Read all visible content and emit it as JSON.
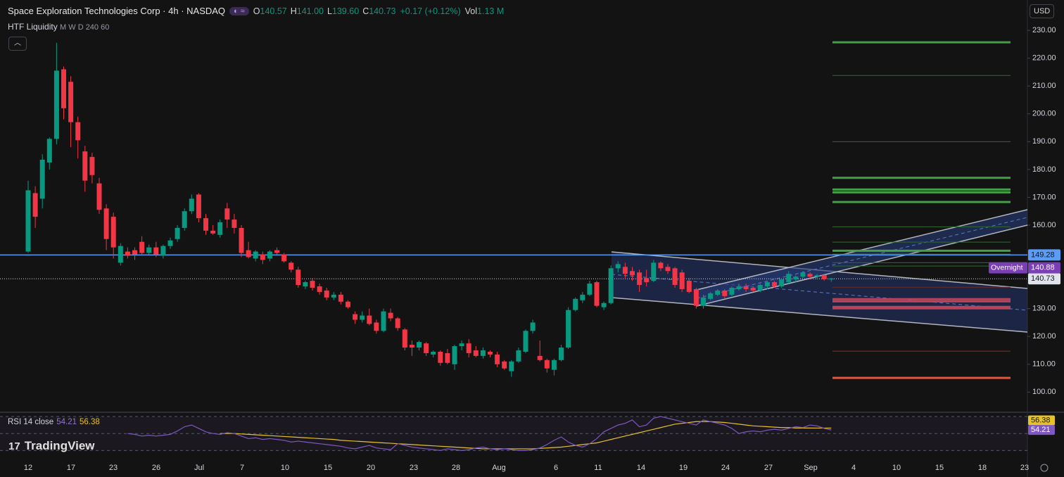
{
  "header": {
    "symbol": "Space Exploration Technologies Corp · 4h · NASDAQ",
    "ohlc": [
      {
        "k": "O",
        "v": "140.57"
      },
      {
        "k": "H",
        "v": "141.00"
      },
      {
        "k": "L",
        "v": "139.60"
      },
      {
        "k": "C",
        "v": "140.73"
      }
    ],
    "change": "+0.17 (+0.12%)",
    "vol_label": "Vol",
    "vol": "1.13 M",
    "indicator": "HTF Liquidity",
    "indicator_params": "M W D 240 60",
    "currency": "USD",
    "logo": "TradingView"
  },
  "chart_data": {
    "type": "candlestick",
    "up_color": "#089981",
    "down_color": "#f23645",
    "ylim": [
      93,
      240.9
    ],
    "yticks": [
      {
        "value": 230,
        "label": "230.00"
      },
      {
        "value": 220,
        "label": "220.00"
      },
      {
        "value": 210,
        "label": "210.00"
      },
      {
        "value": 200,
        "label": "200.00"
      },
      {
        "value": 190,
        "label": "190.00"
      },
      {
        "value": 180,
        "label": "180.00"
      },
      {
        "value": 170,
        "label": "170.00"
      },
      {
        "value": 160,
        "label": "160.00"
      },
      {
        "value": 130,
        "label": "130.00"
      },
      {
        "value": 120,
        "label": "120.00"
      },
      {
        "value": 110,
        "label": "110.00"
      },
      {
        "value": 100,
        "label": "100.00"
      }
    ],
    "x_labels": [
      "12",
      "17",
      "23",
      "26",
      "Jul",
      "7",
      "10",
      "15",
      "20",
      "23",
      "28",
      "Aug",
      "6",
      "11",
      "14",
      "19",
      "24",
      "27",
      "Sep",
      "4",
      "10",
      "15",
      "18",
      "23"
    ],
    "ohlc": [
      [
        150.5,
        176,
        150,
        172.5
      ],
      [
        171.5,
        174,
        159,
        163
      ],
      [
        169.5,
        185.5,
        166,
        183.5
      ],
      [
        182.5,
        191.5,
        180,
        191
      ],
      [
        191,
        225.5,
        189,
        215.5
      ],
      [
        216,
        217,
        198,
        202
      ],
      [
        211.5,
        213.5,
        188,
        197
      ],
      [
        197,
        199,
        184,
        190.5
      ],
      [
        186.5,
        188.5,
        172,
        176
      ],
      [
        184.5,
        186,
        175,
        178
      ],
      [
        175,
        177,
        164,
        165.5
      ],
      [
        166,
        167.5,
        151,
        155
      ],
      [
        163,
        164.5,
        148,
        152
      ],
      [
        146.5,
        153.5,
        145.5,
        152.5
      ],
      [
        150.5,
        152,
        148,
        149
      ],
      [
        151,
        152,
        147.5,
        149.5
      ],
      [
        154,
        156,
        149,
        150
      ],
      [
        150,
        153,
        149.5,
        152
      ],
      [
        152,
        154,
        148.5,
        149.5
      ],
      [
        149,
        153,
        148,
        152.5
      ],
      [
        152.5,
        155.5,
        151.5,
        154.5
      ],
      [
        155,
        160,
        154,
        159
      ],
      [
        159,
        166,
        158,
        165
      ],
      [
        165,
        171,
        164,
        169.5
      ],
      [
        171,
        171.5,
        161,
        162.5
      ],
      [
        162.5,
        164,
        156.5,
        158
      ],
      [
        158,
        160,
        156.5,
        157
      ],
      [
        156.5,
        162,
        155.5,
        161
      ],
      [
        166,
        168,
        159,
        162
      ],
      [
        162,
        164,
        157,
        159
      ],
      [
        159,
        160,
        148.5,
        150
      ],
      [
        151,
        154,
        148,
        148.5
      ],
      [
        148,
        151,
        147,
        150.5
      ],
      [
        149.5,
        150.5,
        146,
        147.5
      ],
      [
        148,
        151,
        147,
        150.5
      ],
      [
        151,
        152,
        149.5,
        150
      ],
      [
        149.5,
        150,
        146.5,
        147
      ],
      [
        146.5,
        147,
        143,
        144
      ],
      [
        144,
        145,
        137.5,
        138.5
      ],
      [
        138,
        140,
        137,
        139.5
      ],
      [
        140,
        141,
        136.5,
        137.5
      ],
      [
        138,
        139,
        135,
        136
      ],
      [
        136.5,
        137.5,
        133,
        134
      ],
      [
        134,
        136,
        133,
        135
      ],
      [
        135,
        136,
        131.5,
        132.5
      ],
      [
        132.5,
        133,
        130,
        130.5
      ],
      [
        128,
        129,
        124.5,
        126
      ],
      [
        126,
        129,
        125,
        127.5
      ],
      [
        127.5,
        130,
        124,
        124.5
      ],
      [
        125,
        126,
        121,
        122
      ],
      [
        122,
        130,
        121.5,
        129
      ],
      [
        128.5,
        130,
        125.5,
        126.5
      ],
      [
        126.5,
        127,
        122,
        123
      ],
      [
        122.5,
        123,
        115,
        116
      ],
      [
        117,
        118.5,
        113,
        116
      ],
      [
        116,
        118.5,
        115,
        118
      ],
      [
        117.5,
        118,
        113,
        114
      ],
      [
        113.5,
        115,
        112.5,
        114.5
      ],
      [
        114.5,
        115,
        109.5,
        110.5
      ],
      [
        114,
        115.5,
        110,
        110.5
      ],
      [
        110,
        117,
        108,
        116.5
      ],
      [
        116.5,
        118.5,
        115,
        117.5
      ],
      [
        117.5,
        119,
        112.5,
        114
      ],
      [
        115,
        116.5,
        112.5,
        113
      ],
      [
        113,
        116,
        112,
        115
      ],
      [
        114.5,
        115,
        112.5,
        113.5
      ],
      [
        113.5,
        114.5,
        109,
        110
      ],
      [
        111,
        111.5,
        108,
        108.5
      ],
      [
        107.5,
        111.5,
        105.5,
        111
      ],
      [
        111,
        116,
        110.5,
        115
      ],
      [
        114.5,
        122.5,
        114,
        122
      ],
      [
        122,
        126,
        121,
        125
      ],
      [
        113,
        118.5,
        111,
        111.5
      ],
      [
        111.5,
        112,
        107,
        108.5
      ],
      [
        108,
        112,
        106,
        111.5
      ],
      [
        111.5,
        117,
        111,
        116
      ],
      [
        116,
        130.5,
        115.5,
        129.5
      ],
      [
        129.5,
        134,
        129,
        133.5
      ],
      [
        133,
        136,
        132,
        135
      ],
      [
        135,
        140,
        134.5,
        139
      ],
      [
        139.5,
        140,
        130.5,
        131
      ],
      [
        130.5,
        132.5,
        129.5,
        132
      ],
      [
        132,
        145.5,
        131.5,
        144.5
      ],
      [
        144.5,
        147,
        143,
        146
      ],
      [
        145,
        146.5,
        141,
        142.5
      ],
      [
        143.5,
        145,
        140,
        142
      ],
      [
        143,
        144,
        136,
        138.5
      ],
      [
        141,
        144,
        138,
        139.5
      ],
      [
        140,
        147.5,
        139.5,
        146.5
      ],
      [
        146.5,
        147,
        143.5,
        144.5
      ],
      [
        145,
        146,
        142.5,
        143.5
      ],
      [
        144.5,
        145,
        137.5,
        138.5
      ],
      [
        143,
        144,
        136,
        137
      ],
      [
        140,
        141,
        135.5,
        136
      ],
      [
        137,
        137.5,
        130,
        131
      ],
      [
        131,
        135,
        130,
        134
      ],
      [
        133.5,
        136,
        133,
        135.5
      ],
      [
        135,
        137,
        134.5,
        136.5
      ],
      [
        136.5,
        137,
        133.5,
        134.5
      ],
      [
        135,
        138,
        134.5,
        137.5
      ],
      [
        137,
        139,
        136.5,
        138
      ],
      [
        138,
        139,
        136,
        137
      ],
      [
        137.5,
        138,
        136,
        136.5
      ],
      [
        136.5,
        139,
        136,
        138.5
      ],
      [
        138,
        140,
        137,
        139.5
      ],
      [
        139.5,
        140,
        137.5,
        138
      ],
      [
        138,
        141,
        137.5,
        140.5
      ],
      [
        139.5,
        143.5,
        139,
        142.5
      ],
      [
        140.5,
        142,
        139.5,
        141.5
      ],
      [
        141.5,
        143.5,
        141,
        143
      ],
      [
        142.5,
        143,
        140.5,
        141.5
      ],
      [
        141.5,
        142.5,
        140.5,
        142
      ],
      [
        142,
        142.5,
        140,
        140.57
      ],
      [
        140.57,
        141,
        139.6,
        140.73
      ]
    ],
    "liquidity_levels": [
      {
        "price": 225.7,
        "color": "#43a047",
        "weight": "strong"
      },
      {
        "price": 213.8,
        "color": "#2e6b30",
        "weight": "weak"
      },
      {
        "price": 190,
        "color": "#2e6b30",
        "weight": "weak"
      },
      {
        "price": 177,
        "color": "#43a047",
        "weight": "strong"
      },
      {
        "price": 172.8,
        "color": "#43a047",
        "weight": "strong"
      },
      {
        "price": 171.8,
        "color": "#43a047",
        "weight": "strong"
      },
      {
        "price": 168.3,
        "color": "#43a047",
        "weight": "strong"
      },
      {
        "price": 159.4,
        "color": "#2e6b30",
        "weight": "weak"
      },
      {
        "price": 153.9,
        "color": "#2e6b30",
        "weight": "weak"
      },
      {
        "price": 150.8,
        "color": "#43a047",
        "weight": "strong"
      },
      {
        "price": 149.6,
        "color": "#2e6b30",
        "weight": "weak"
      },
      {
        "price": 146.5,
        "color": "#2e6b30",
        "weight": "weak"
      },
      {
        "price": 145.3,
        "color": "#2e6b30",
        "weight": "weak"
      },
      {
        "price": 137.7,
        "color": "#6e2a2a",
        "weight": "weak"
      },
      {
        "price": 133.4,
        "color": "#b8435a",
        "weight": "strong"
      },
      {
        "price": 132.6,
        "color": "#b8435a",
        "weight": "strong"
      },
      {
        "price": 130.6,
        "color": "#b8435a",
        "weight": "strong"
      },
      {
        "price": 130.1,
        "color": "#b8435a",
        "weight": "strong"
      },
      {
        "price": 114.7,
        "color": "#8a2a2a",
        "weight": "weak"
      },
      {
        "price": 105.1,
        "color": "#e0583a",
        "weight": "strong"
      }
    ],
    "hline": {
      "value": 149.28,
      "color": "#5b9cf6"
    },
    "last_price": 140.73,
    "overnight": {
      "label": "Overnight",
      "value": 140.88
    },
    "rsi": {
      "label": "RSI 14 close",
      "value": 54.21,
      "ma_value": 56.38,
      "color": "#7e57c2",
      "ma_color": "#e6c229",
      "ylim": [
        22,
        75
      ],
      "levels": [
        70,
        50,
        30
      ],
      "values": [
        null,
        null,
        null,
        null,
        null,
        null,
        null,
        null,
        null,
        null,
        null,
        null,
        null,
        null,
        50,
        49,
        47,
        48,
        47,
        48,
        49,
        53,
        58,
        60,
        56,
        52,
        50,
        49,
        51,
        50,
        47,
        44,
        45,
        43,
        44,
        43,
        42,
        40,
        41,
        40,
        39,
        38,
        37,
        36,
        35,
        33,
        32,
        34,
        36,
        33,
        32,
        31,
        38,
        36,
        34,
        33,
        32,
        31,
        30,
        32,
        31,
        30,
        31,
        33,
        34,
        32,
        31,
        32,
        31,
        30,
        30,
        31,
        33,
        37,
        42,
        46,
        40,
        36,
        34,
        38,
        44,
        52,
        56,
        60,
        62,
        66,
        58,
        60,
        68,
        70,
        68,
        66,
        64,
        62,
        60,
        66,
        64,
        62,
        60,
        56,
        50,
        52,
        53,
        52,
        54,
        55,
        54,
        56,
        58,
        57,
        60,
        59,
        56,
        54.21
      ],
      "ma": [
        null,
        null,
        null,
        null,
        null,
        null,
        null,
        null,
        null,
        null,
        null,
        null,
        null,
        null,
        null,
        null,
        null,
        null,
        null,
        null,
        null,
        null,
        null,
        null,
        null,
        null,
        null,
        50,
        50,
        50,
        49.5,
        49,
        48.5,
        48,
        47.5,
        47,
        46.5,
        46,
        45.5,
        45,
        44.5,
        44,
        43.5,
        43,
        42,
        41.5,
        41,
        40.5,
        40,
        39.5,
        39,
        38.5,
        38,
        37.5,
        37,
        36.5,
        36,
        35.5,
        35,
        34.5,
        34,
        33.5,
        33,
        32.5,
        32,
        32,
        32,
        32,
        32,
        32,
        32,
        32,
        32.5,
        33,
        33.5,
        34,
        35,
        36,
        37,
        38,
        39,
        41,
        43,
        45,
        47,
        49,
        51,
        53,
        55,
        57,
        59,
        61,
        62,
        63,
        64,
        64,
        64,
        63.5,
        63,
        62,
        61,
        60,
        59,
        58.5,
        58,
        57.5,
        57,
        57,
        56.5,
        56.5,
        56.5,
        56.4,
        56.4,
        56.38
      ]
    }
  }
}
